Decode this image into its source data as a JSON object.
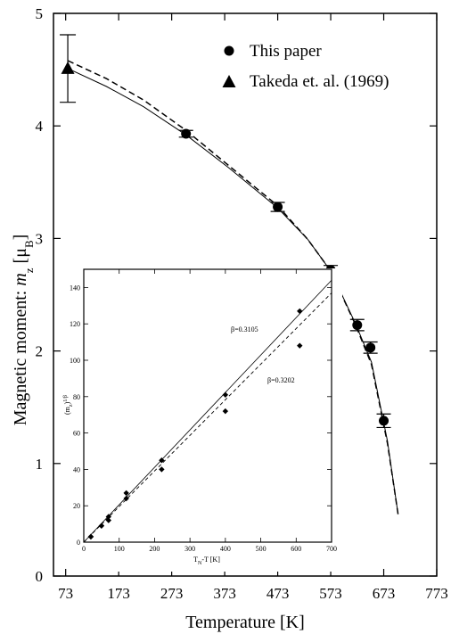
{
  "chart_data": [
    {
      "type": "scatter",
      "title": "",
      "xlabel": "Temperature [K]",
      "ylabel_main": "Magnetic moment: ",
      "ylabel_var": "m",
      "ylabel_sub": "z",
      "ylabel_unit_open": " [μ",
      "ylabel_unit_sub": "B",
      "ylabel_unit_close": "]",
      "xlim": [
        50,
        773
      ],
      "ylim": [
        0,
        5
      ],
      "xticks": [
        73,
        173,
        273,
        373,
        473,
        573,
        673,
        773
      ],
      "yticks": [
        0,
        1,
        2,
        3,
        4,
        5
      ],
      "legend_position": "top-right",
      "series": [
        {
          "name": "This paper",
          "marker": "circle",
          "x": [
            300,
            473,
            573,
            623,
            648,
            673
          ],
          "y": [
            3.93,
            3.28,
            2.72,
            2.23,
            2.03,
            1.38
          ],
          "yerr": [
            0.03,
            0.04,
            0.04,
            0.05,
            0.05,
            0.06
          ]
        },
        {
          "name": "Takeda et. al. (1969)",
          "marker": "triangle",
          "x": [
            77
          ],
          "y": [
            4.51
          ],
          "yerr": [
            0.3
          ]
        },
        {
          "name": "",
          "style": "solid",
          "x": [
            77,
            150,
            220,
            300,
            380,
            473,
            530,
            573,
            620,
            650,
            680,
            700
          ],
          "y": [
            4.51,
            4.35,
            4.17,
            3.92,
            3.63,
            3.27,
            2.99,
            2.71,
            2.24,
            1.9,
            1.2,
            0.55
          ]
        },
        {
          "name": "",
          "style": "dashed",
          "x": [
            77,
            150,
            220,
            300,
            380,
            473,
            530,
            573,
            620,
            650,
            680,
            700
          ],
          "y": [
            4.58,
            4.42,
            4.23,
            3.96,
            3.65,
            3.29,
            2.99,
            2.71,
            2.23,
            1.88,
            1.18,
            0.55
          ]
        }
      ]
    },
    {
      "type": "scatter",
      "title": "",
      "xlabel_main": "T",
      "xlabel_sub": "N",
      "xlabel_rest": "-T [K]",
      "ylabel_main": "(m",
      "ylabel_sub": "z",
      "ylabel_sup": ")",
      "ylabel_power": "1/β",
      "xlim": [
        0,
        700
      ],
      "ylim": [
        0,
        150
      ],
      "xticks": [
        0,
        100,
        200,
        300,
        400,
        500,
        600,
        700
      ],
      "yticks": [
        0,
        20,
        40,
        60,
        80,
        100,
        120,
        140
      ],
      "series": [
        {
          "name": "β=0.3105",
          "style": "solid",
          "points_x": [
            20,
            50,
            70,
            120,
            220,
            400,
            610
          ],
          "points_y": [
            3,
            9,
            14,
            27,
            45,
            81,
            127
          ],
          "fit": [
            [
              0,
              0
            ],
            [
              700,
              144
            ]
          ]
        },
        {
          "name": "β=0.3202",
          "style": "dashed",
          "points_x": [
            20,
            50,
            70,
            120,
            220,
            400,
            610
          ],
          "points_y": [
            3,
            9,
            12,
            24,
            40,
            72,
            108
          ],
          "fit": [
            [
              0,
              0
            ],
            [
              700,
              137
            ]
          ]
        }
      ]
    }
  ]
}
